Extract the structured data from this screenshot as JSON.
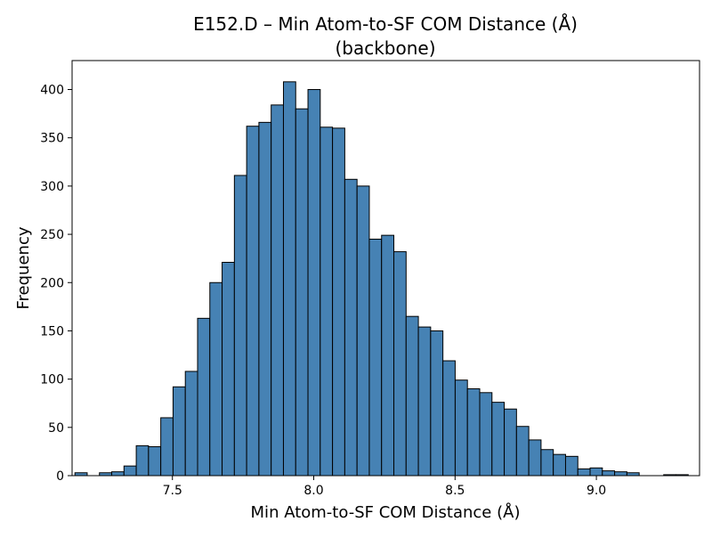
{
  "chart_data": {
    "type": "bar",
    "title_line1": "E152.D – Min Atom-to-SF COM Distance (Å)",
    "title_line2": "(backbone)",
    "xlabel": "Min Atom-to-SF COM Distance (Å)",
    "ylabel": "Frequency",
    "xlim": [
      7.145,
      9.365
    ],
    "ylim": [
      0,
      430
    ],
    "x_ticks": [
      7.5,
      8.0,
      8.5,
      9.0
    ],
    "x_tick_labels": [
      "7.5",
      "8.0",
      "8.5",
      "9.0"
    ],
    "y_ticks": [
      0,
      50,
      100,
      150,
      200,
      250,
      300,
      350,
      400
    ],
    "y_tick_labels": [
      "0",
      "50",
      "100",
      "150",
      "200",
      "250",
      "300",
      "350",
      "400"
    ],
    "bin_start": 7.155,
    "bin_width": 0.0434,
    "values": [
      3,
      0,
      3,
      4,
      10,
      31,
      30,
      60,
      92,
      108,
      163,
      200,
      221,
      311,
      362,
      366,
      384,
      408,
      380,
      400,
      361,
      360,
      307,
      300,
      245,
      249,
      232,
      165,
      154,
      150,
      119,
      99,
      90,
      86,
      76,
      69,
      51,
      37,
      27,
      22,
      20,
      7,
      8,
      5,
      4,
      3,
      0,
      0,
      1,
      1
    ],
    "bar_color": "#4682B4",
    "edge_color": "#000000"
  }
}
